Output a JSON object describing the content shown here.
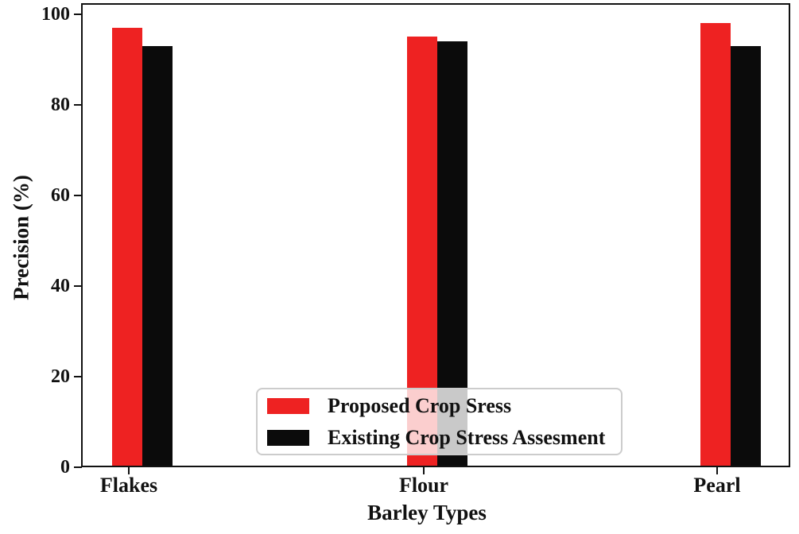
{
  "chart_data": {
    "type": "bar",
    "title": "",
    "xlabel": "Barley Types",
    "ylabel": "Precision (%)",
    "categories": [
      "Flakes",
      "Flour",
      "Pearl"
    ],
    "series": [
      {
        "name": "Proposed Crop Sress",
        "color": "#ee2222",
        "values": [
          97,
          95,
          98
        ]
      },
      {
        "name": "Existing Crop Stress Assesment",
        "color": "#0b0b0b",
        "values": [
          93,
          94,
          93
        ]
      }
    ],
    "yticks": [
      0,
      20,
      40,
      60,
      80,
      100
    ],
    "ylim": [
      0,
      102.5
    ],
    "grid": false,
    "legend_position": "lower center",
    "frame_color": "#111111",
    "legend_border_color": "#cccccc"
  }
}
